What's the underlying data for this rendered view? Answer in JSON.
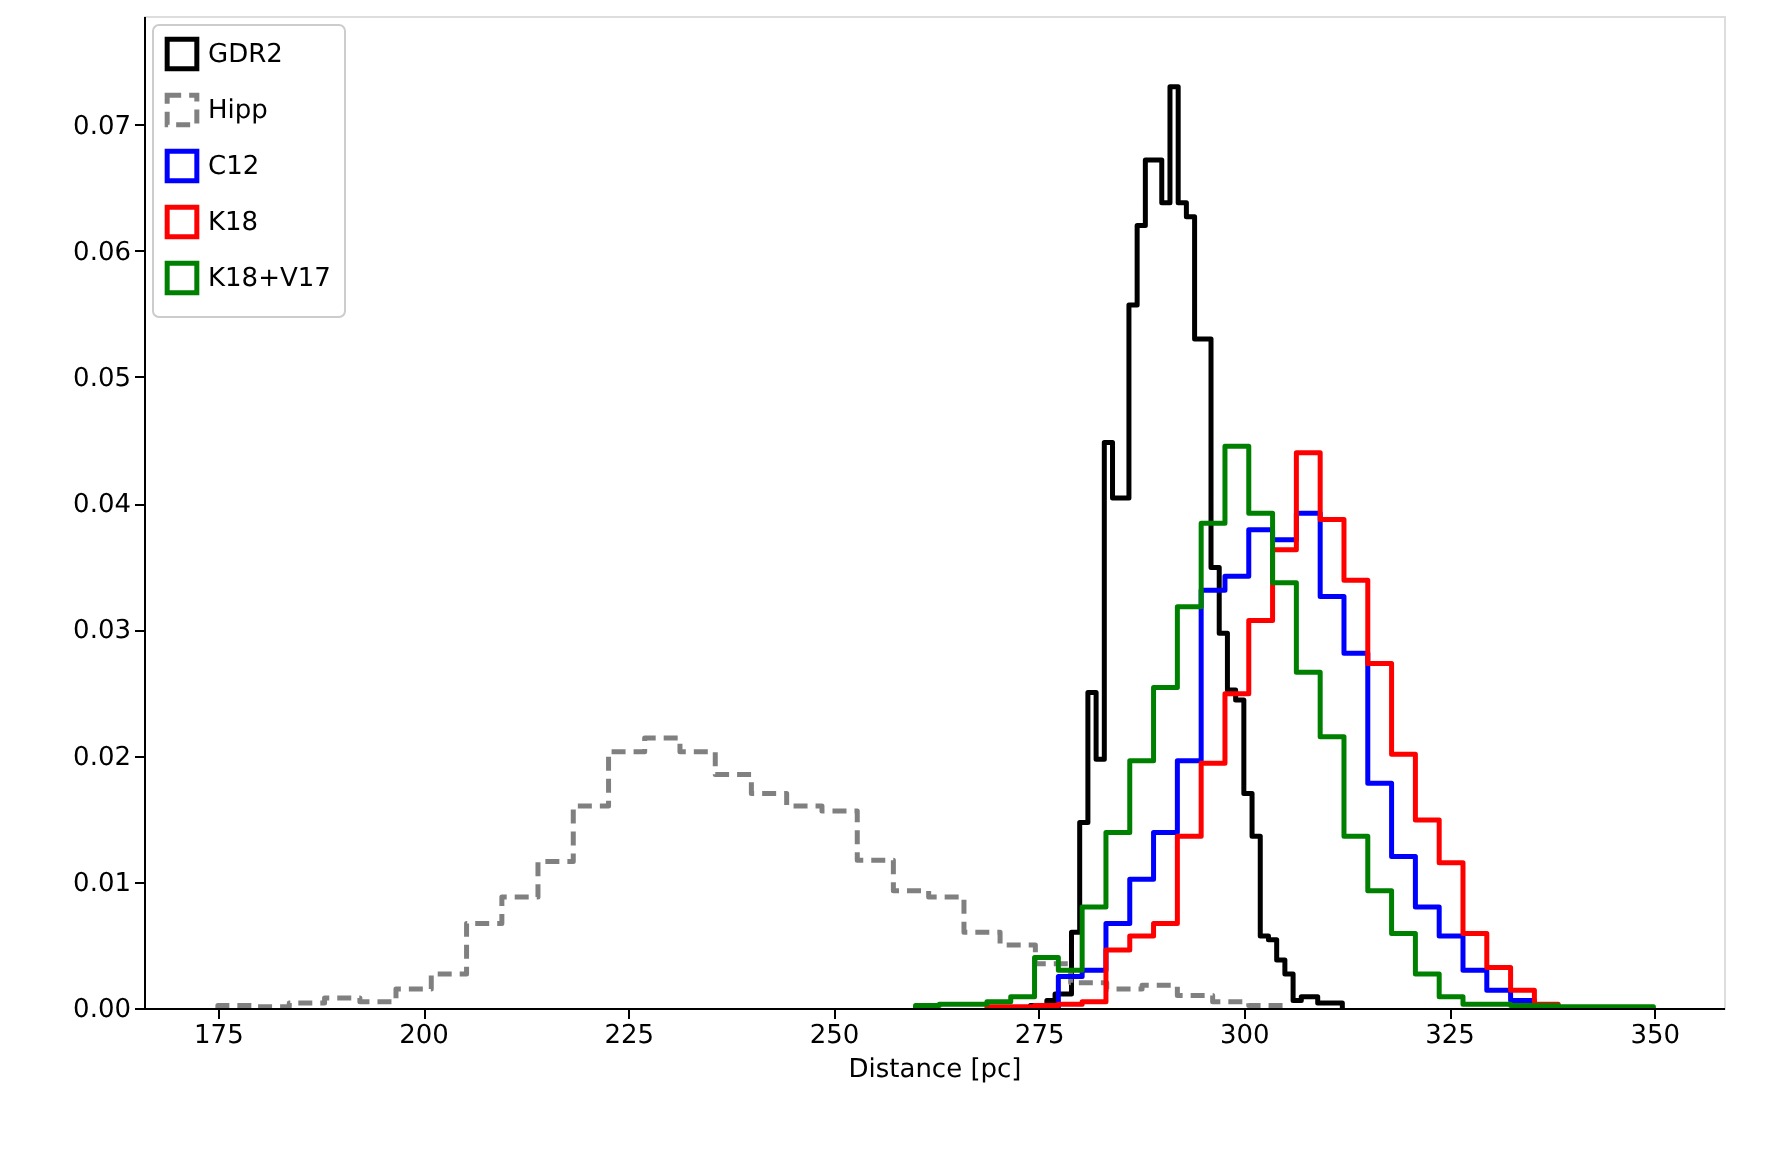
{
  "chart_data": {
    "type": "step",
    "xlabel": "Distance [pc]",
    "xlim": [
      166,
      358.5
    ],
    "ylim": [
      0,
      0.0786
    ],
    "xticks": [
      175,
      200,
      225,
      250,
      275,
      300,
      325,
      350
    ],
    "yticks": [
      {
        "value": 0,
        "label": "0.00"
      },
      {
        "value": 0.01,
        "label": "0.01"
      },
      {
        "value": 0.02,
        "label": "0.02"
      },
      {
        "value": 0.03,
        "label": "0.03"
      },
      {
        "value": 0.04,
        "label": "0.04"
      },
      {
        "value": 0.05,
        "label": "0.05"
      },
      {
        "value": 0.06,
        "label": "0.06"
      },
      {
        "value": 0.07,
        "label": "0.07"
      }
    ],
    "grid": false,
    "legend": "top left",
    "series": [
      {
        "name": "GDR2",
        "color": "#000000",
        "line_style": "solid",
        "x": [
          274,
          274,
          275,
          276,
          277,
          278,
          279,
          280,
          281,
          282,
          283,
          284,
          285,
          286,
          287,
          288,
          289,
          290,
          291,
          292,
          293,
          294,
          295,
          296,
          297,
          298,
          299,
          300,
          301,
          302,
          303,
          304,
          305,
          306,
          307,
          308,
          309,
          310,
          311,
          312
        ],
        "values": [
          0,
          0.0002,
          0.0002,
          0.0006,
          0.0011,
          0.0011,
          0.006,
          0.0147,
          0.025,
          0.0197,
          0.0448,
          0.0404,
          0.0404,
          0.0557,
          0.062,
          0.0672,
          0.0672,
          0.0638,
          0.073,
          0.0638,
          0.0627,
          0.053,
          0.053,
          0.0349,
          0.0297,
          0.0252,
          0.0244,
          0.017,
          0.0136,
          0.0057,
          0.0054,
          0.0038,
          0.0027,
          0.0006,
          0.0009,
          0.0009,
          0.0004,
          0.0004,
          0.0004,
          0
        ]
      },
      {
        "name": "Hipp",
        "color": "#808080",
        "line_style": "dashed",
        "x": [
          175,
          175,
          179.3,
          183.7,
          188,
          192.3,
          196.7,
          201,
          205.3,
          209.6,
          214,
          218.3,
          222.6,
          227,
          231.3,
          235.6,
          240,
          244.3,
          248.6,
          252.9,
          257.3,
          261.6,
          265.9,
          270.3,
          274.6,
          278.9,
          283.3,
          287.6,
          291.9,
          296.2,
          300.6,
          304.9
        ],
        "values": [
          0,
          0.0002,
          0.0001,
          0.0004,
          0.0008,
          0.0005,
          0.0015,
          0.0027,
          0.0067,
          0.0088,
          0.0116,
          0.016,
          0.0203,
          0.0214,
          0.0203,
          0.0185,
          0.017,
          0.016,
          0.0156,
          0.0117,
          0.0093,
          0.0088,
          0.006,
          0.005,
          0.0035,
          0.002,
          0.0015,
          0.0018,
          0.001,
          0.0005,
          0.0002,
          0
        ]
      },
      {
        "name": "C12",
        "color": "#0000ff",
        "line_style": "solid",
        "x": [
          277.4,
          277.4,
          280.3,
          283.2,
          286.1,
          289,
          291.9,
          294.8,
          297.7,
          300.6,
          303.5,
          306.4,
          309.3,
          312.2,
          315.1,
          318,
          320.9,
          323.8,
          326.7,
          329.6,
          332.5,
          335.4
        ],
        "values": [
          0,
          0.0025,
          0.003,
          0.0067,
          0.0102,
          0.0139,
          0.0196,
          0.0331,
          0.0342,
          0.0379,
          0.0371,
          0.0392,
          0.0326,
          0.0281,
          0.0178,
          0.012,
          0.008,
          0.0057,
          0.003,
          0.0014,
          0.0006,
          0
        ]
      },
      {
        "name": "K18",
        "color": "#ff0000",
        "line_style": "solid",
        "x": [
          268.7,
          268.7,
          271.6,
          274.5,
          277.4,
          280.3,
          283.2,
          286.1,
          289,
          291.9,
          294.8,
          297.7,
          300.6,
          303.5,
          306.4,
          309.3,
          312.2,
          315.1,
          318,
          320.9,
          323.8,
          326.7,
          329.6,
          332.5,
          335.4,
          338.3
        ],
        "values": [
          0,
          0.0001,
          0.0001,
          0.0002,
          0.0003,
          0.0005,
          0.0046,
          0.0057,
          0.0067,
          0.0136,
          0.0194,
          0.0249,
          0.0307,
          0.0363,
          0.044,
          0.0387,
          0.0339,
          0.0273,
          0.0201,
          0.0149,
          0.0115,
          0.0059,
          0.0032,
          0.0014,
          0.0003,
          0
        ]
      },
      {
        "name": "K18+V17",
        "color": "#008000",
        "line_style": "solid",
        "x": [
          260,
          260,
          262.9,
          265.8,
          268.7,
          271.6,
          274.5,
          277.4,
          280.3,
          283.2,
          286.1,
          289,
          291.9,
          294.8,
          297.7,
          300.6,
          303.5,
          306.4,
          309.3,
          312.2,
          315.1,
          318,
          320.9,
          323.8,
          326.7,
          329.6,
          332.5,
          335.4,
          338.3,
          341.2,
          344.1,
          347,
          349.9
        ],
        "values": [
          0,
          0.0002,
          0.0003,
          0.0003,
          0.0005,
          0.0009,
          0.004,
          0.003,
          0.008,
          0.0139,
          0.0196,
          0.0254,
          0.0318,
          0.0384,
          0.0445,
          0.0392,
          0.0337,
          0.0266,
          0.0215,
          0.0136,
          0.0093,
          0.0059,
          0.0027,
          0.0009,
          0.0003,
          0.0003,
          0.0002,
          0.0002,
          0.0001,
          0.0001,
          0.0001,
          0.0001,
          0
        ]
      }
    ]
  }
}
